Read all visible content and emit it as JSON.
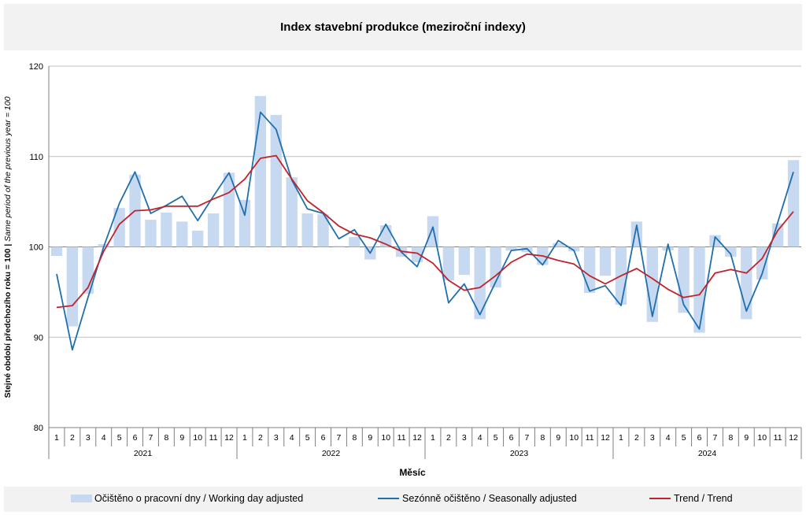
{
  "title": "Index stavební produkce (meziroční indexy)",
  "chart_data": {
    "type": "bar+line",
    "title": "Index stavební produkce (meziroční indexy)",
    "xlabel": "Měsíc",
    "ylabel": "Stejné období předchozího roku = 100 | Same period of  the previous year = 100",
    "ylim": [
      80,
      120
    ],
    "yticks": [
      80,
      90,
      100,
      110,
      120
    ],
    "bar_base": 100,
    "grid": "horizontal",
    "legend_position": "bottom",
    "years": [
      "2021",
      "2022",
      "2023",
      "2024"
    ],
    "months": [
      "1",
      "2",
      "3",
      "4",
      "5",
      "6",
      "7",
      "8",
      "9",
      "10",
      "11",
      "12"
    ],
    "series": [
      {
        "name": "Očištěno o pracovní dny / Working day adjusted",
        "kind": "bar",
        "color": "#c6d9f1",
        "values": [
          99.0,
          91.2,
          94.8,
          100.3,
          104.3,
          108.0,
          103.0,
          103.8,
          102.8,
          101.8,
          103.7,
          108.2,
          105.2,
          116.7,
          114.6,
          107.7,
          103.7,
          103.6,
          100.1,
          101.1,
          98.6,
          102.4,
          98.9,
          98.3,
          103.4,
          96.3,
          96.9,
          92.0,
          95.5,
          99.6,
          99.4,
          98.0,
          100.4,
          99.5,
          94.9,
          96.8,
          93.6,
          102.8,
          91.7,
          99.6,
          92.7,
          90.5,
          101.3,
          98.9,
          92.0,
          96.4,
          102.6,
          109.6
        ]
      },
      {
        "name": "Sezónně očištěno / Seasonally adjusted",
        "kind": "line",
        "color": "#1f6fad",
        "values": [
          97.0,
          88.6,
          94.4,
          100.0,
          104.8,
          108.3,
          103.7,
          104.6,
          105.6,
          102.9,
          105.6,
          108.2,
          103.5,
          114.9,
          113.0,
          107.4,
          104.2,
          103.7,
          100.9,
          101.9,
          99.3,
          102.5,
          99.4,
          97.8,
          102.2,
          93.8,
          95.9,
          92.5,
          96.1,
          99.6,
          99.8,
          98.0,
          100.7,
          99.6,
          95.1,
          95.7,
          93.5,
          102.4,
          92.3,
          100.3,
          93.6,
          90.9,
          101.1,
          99.2,
          92.9,
          97.0,
          102.7,
          108.3
        ]
      },
      {
        "name": "Trend / Trend",
        "kind": "line",
        "color": "#c0232b",
        "values": [
          93.3,
          93.5,
          95.5,
          99.5,
          102.5,
          104.0,
          104.1,
          104.5,
          104.5,
          104.5,
          105.3,
          106.0,
          107.5,
          109.8,
          110.1,
          107.5,
          105.1,
          103.8,
          102.3,
          101.4,
          101.0,
          100.3,
          99.5,
          99.3,
          98.2,
          96.3,
          95.2,
          95.5,
          96.8,
          98.3,
          99.2,
          99.0,
          98.5,
          98.1,
          96.8,
          95.9,
          96.8,
          97.6,
          96.5,
          95.3,
          94.4,
          94.7,
          97.1,
          97.5,
          97.1,
          98.7,
          101.8,
          103.9
        ]
      }
    ]
  }
}
